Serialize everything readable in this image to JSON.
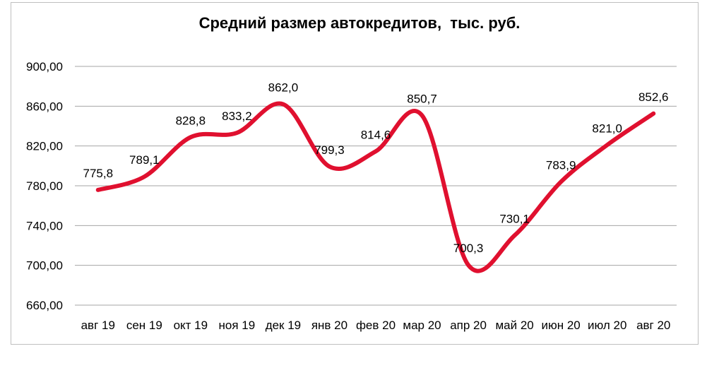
{
  "chart_data": {
    "type": "line",
    "title": "Средний размер автокредитов,  тыс. руб.",
    "xlabel": "",
    "ylabel": "",
    "ylim": [
      660,
      900
    ],
    "yticks": [
      "900,00",
      "860,00",
      "820,00",
      "780,00",
      "740,00",
      "700,00",
      "660,00"
    ],
    "ytick_values": [
      900,
      860,
      820,
      780,
      740,
      700,
      660
    ],
    "categories": [
      "авг 19",
      "сен 19",
      "окт 19",
      "ноя 19",
      "дек 19",
      "янв 20",
      "фев 20",
      "мар 20",
      "апр 20",
      "май 20",
      "июн 20",
      "июл 20",
      "авг 20"
    ],
    "series": [
      {
        "values": [
          775.8,
          789.1,
          828.8,
          833.2,
          862.0,
          799.3,
          814.6,
          850.7,
          700.3,
          730.1,
          783.9,
          821.0,
          852.6
        ],
        "labels": [
          "775,8",
          "789,1",
          "828,8",
          "833,2",
          "862,0",
          "799,3",
          "814,6",
          "850,7",
          "700,3",
          "730,1",
          "783,9",
          "821,0",
          "852,6"
        ],
        "color": "#e0102f"
      }
    ],
    "grid": true,
    "legend": "none"
  }
}
